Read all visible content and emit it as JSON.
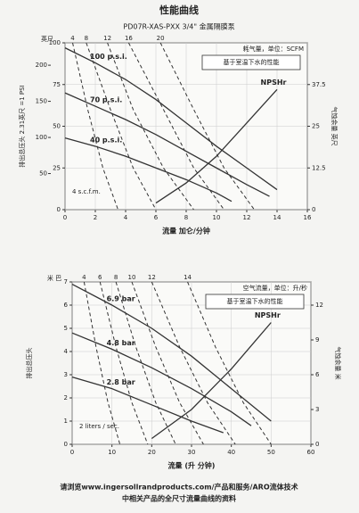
{
  "header": {
    "title": "性能曲线",
    "subtitle": "PD07R-XAS-PXX 3/4\" 金属隔膜泵"
  },
  "chart_data": [
    {
      "type": "line",
      "corner_label": "英尺",
      "x_label": "流量 加仑/分钟",
      "y_label": "排出总压头 2.31英尺 =1 PSI",
      "y2_label": "气蚀余量 英尺",
      "top_axis_label": "耗气量，单位：SCFM",
      "note": "基于室温下水的性能",
      "annotation": "4 s.c.f.m.",
      "xlim": [
        0,
        16
      ],
      "xticks": [
        0,
        2,
        4,
        6,
        8,
        10,
        12,
        14,
        16
      ],
      "ylim": [
        0,
        100
      ],
      "yticks": [
        0,
        25,
        50,
        75,
        100
      ],
      "y_outer_lim": [
        0,
        231
      ],
      "y_outer_ticks": [
        50,
        100,
        150,
        200
      ],
      "y2lim": [
        0,
        50
      ],
      "y2ticks": [
        0,
        12.5,
        25,
        37.5
      ],
      "grid": true,
      "series": [
        {
          "name": "100 p.s.i.",
          "kind": "pressure",
          "color": "#333333",
          "x": [
            0,
            2,
            4,
            6,
            8,
            10,
            12,
            14
          ],
          "y": [
            97,
            88,
            78,
            66,
            52,
            38,
            25,
            12
          ]
        },
        {
          "name": "70 p.s.i.",
          "kind": "pressure",
          "color": "#333333",
          "x": [
            0,
            2,
            4,
            6,
            8,
            10,
            12,
            13.5
          ],
          "y": [
            70,
            62,
            54,
            45,
            35,
            25,
            15,
            8
          ]
        },
        {
          "name": "40 p.s.i.",
          "kind": "pressure",
          "color": "#333333",
          "x": [
            0,
            2,
            4,
            6,
            8,
            10,
            11
          ],
          "y": [
            43,
            38,
            32,
            25,
            18,
            10,
            5
          ]
        },
        {
          "name": "4",
          "kind": "air",
          "color": "#333333",
          "x": [
            0.5,
            1.5,
            2.5,
            3.5
          ],
          "y": [
            100,
            60,
            25,
            0
          ]
        },
        {
          "name": "8",
          "kind": "air",
          "color": "#333333",
          "x": [
            1.4,
            3,
            4.5,
            6
          ],
          "y": [
            100,
            60,
            25,
            0
          ]
        },
        {
          "name": "12",
          "kind": "air",
          "color": "#333333",
          "x": [
            2.8,
            4.5,
            6.5,
            8.5
          ],
          "y": [
            100,
            60,
            25,
            0
          ]
        },
        {
          "name": "16",
          "kind": "air",
          "color": "#333333",
          "x": [
            4.2,
            6.5,
            8.5,
            10.5
          ],
          "y": [
            100,
            60,
            25,
            0
          ]
        },
        {
          "name": "20",
          "kind": "air",
          "color": "#333333",
          "x": [
            6.3,
            8.5,
            10.5,
            12.5
          ],
          "y": [
            100,
            60,
            25,
            0
          ]
        },
        {
          "name": "NPSHr",
          "kind": "npsh",
          "axis": "y2",
          "color": "#333333",
          "x": [
            6,
            8,
            10,
            12,
            14
          ],
          "y": [
            2,
            8,
            16,
            26,
            36
          ]
        }
      ]
    },
    {
      "type": "line",
      "corner_label": "米 巴",
      "x_label": "流量 (升 分钟)",
      "y_label": "排出总压头",
      "y2_label": "气蚀余量 米",
      "top_axis_label": "空气流量，单位：升/秒",
      "note": "基于室温下水的性能",
      "annotation": "2 liters / sec.",
      "xlim": [
        0,
        60
      ],
      "xticks": [
        0,
        10,
        20,
        30,
        40,
        50,
        60
      ],
      "ylim": [
        0,
        7
      ],
      "yticks": [
        0,
        1,
        2,
        3,
        4,
        5,
        6,
        7
      ],
      "y2lim": [
        0,
        14
      ],
      "y2ticks": [
        0,
        3,
        6,
        9,
        12
      ],
      "grid": true,
      "series": [
        {
          "name": "6.9 bar",
          "kind": "pressure",
          "color": "#333333",
          "x": [
            0,
            10,
            20,
            30,
            40,
            50
          ],
          "y": [
            6.9,
            6,
            5,
            3.8,
            2.4,
            1
          ]
        },
        {
          "name": "4.8 bar",
          "kind": "pressure",
          "color": "#333333",
          "x": [
            0,
            10,
            20,
            30,
            40,
            45
          ],
          "y": [
            4.8,
            4.1,
            3.3,
            2.4,
            1.4,
            0.8
          ]
        },
        {
          "name": "2.8 bar",
          "kind": "pressure",
          "color": "#333333",
          "x": [
            0,
            10,
            20,
            30,
            38
          ],
          "y": [
            2.9,
            2.4,
            1.7,
            1,
            0.5
          ]
        },
        {
          "name": "4",
          "kind": "air",
          "color": "#333333",
          "x": [
            3,
            6,
            9,
            12
          ],
          "y": [
            7,
            4.2,
            1.8,
            0
          ]
        },
        {
          "name": "6",
          "kind": "air",
          "color": "#333333",
          "x": [
            7,
            11,
            15,
            19
          ],
          "y": [
            7,
            4.2,
            1.8,
            0
          ]
        },
        {
          "name": "8",
          "kind": "air",
          "color": "#333333",
          "x": [
            11,
            16,
            21,
            26
          ],
          "y": [
            7,
            4.2,
            1.8,
            0
          ]
        },
        {
          "name": "10",
          "kind": "air",
          "color": "#333333",
          "x": [
            15,
            21,
            27,
            33
          ],
          "y": [
            7,
            4.2,
            1.8,
            0
          ]
        },
        {
          "name": "12",
          "kind": "air",
          "color": "#333333",
          "x": [
            20,
            27,
            34,
            41
          ],
          "y": [
            7,
            4.2,
            1.8,
            0
          ]
        },
        {
          "name": "14",
          "kind": "air",
          "color": "#333333",
          "x": [
            29,
            36,
            43,
            50
          ],
          "y": [
            7,
            4.2,
            1.8,
            0
          ]
        },
        {
          "name": "NPSHr",
          "kind": "npsh",
          "axis": "y2",
          "color": "#333333",
          "x": [
            20,
            30,
            40,
            50
          ],
          "y": [
            0.5,
            3,
            6.5,
            10.5
          ]
        }
      ]
    }
  ],
  "footer": {
    "lines": [
      "请浏览www.ingersollrandproducts.com/产品和服务/ARO流体技术",
      "中相关产品的全尺寸流量曲线的资料"
    ]
  }
}
